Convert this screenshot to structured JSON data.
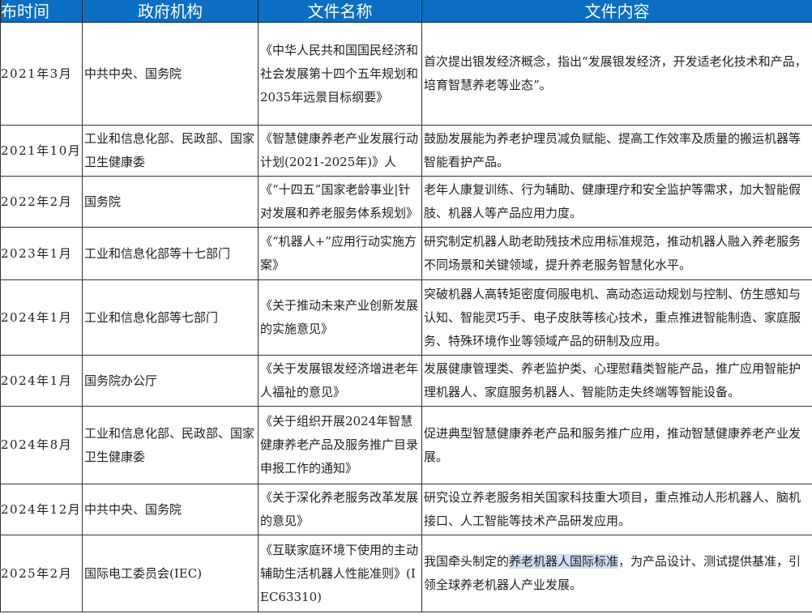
{
  "table": {
    "headers": [
      "布时间",
      "政府机构",
      "文件名称",
      "文件内容"
    ],
    "rows": [
      {
        "date": "2021年3月",
        "agency": "中共中央、国务院",
        "document": "《中华人民共和国国民经济和社会发展第十四个五年规划和2035年远景目标纲要》",
        "content": "首次提出银发经济概念，指出“发展银发经济，开发适老化技术和产品，培育智慧养老等业态”。"
      },
      {
        "date": "2021年10月",
        "agency": "工业和信息化部、民政部、国家卫生健康委",
        "document": "《智慧健康养老产业发展行动计划(2021-2025年)》人",
        "content": "鼓励发展能为养老护理员减负赋能、提高工作效率及质量的搬运机器等智能看护产品。"
      },
      {
        "date": "2022年2月",
        "agency": "国务院",
        "document": "《“十四五”国家老龄事业|针对发展和养老服务体系规划》",
        "content": "老年人康复训练、行为辅助、健康理疗和安全监护等需求，加大智能假肢、机器人等产品应用力度。"
      },
      {
        "date": "2023年1月",
        "agency": "工业和信息化部等十七部门",
        "document": "《“机器人+”应用行动实施方案》",
        "content": "研究制定机器人助老助残技术应用标准规范，推动机器人融入养老服务不同场景和关键领域，提升养老服务智慧化水平。"
      },
      {
        "date": "2024年1月",
        "agency": "工业和信息化部等七部门",
        "document": "《关于推动未来产业创新发展的实施意见》",
        "content": "突破机器人高转矩密度伺服电机、高动态运动规划与控制、仿生感知与认知、智能灵巧手、电子皮肤等核心技术，重点推进智能制造、家庭服务、特殊环境作业等领域产品的研制及应用。"
      },
      {
        "date": "2024年1月",
        "agency": "国务院办公厅",
        "document": "《关于发展银发经济增进老年人福祉的意见》",
        "content": "发展健康管理类、养老监护类、心理慰藉类智能产品，推广应用智能护理机器人、家庭服务机器人、智能防走失终端等智能设备。"
      },
      {
        "date": "2024年8月",
        "agency": "工业和信息化部、民政部、国家卫生健康委",
        "document": "《关于组织开展2024年智慧健康养老产品及服务推广目录申报工作的通知》",
        "content": "促进典型智慧健康养老产品和服务推广应用，推动智慧健康养老产业发展。"
      },
      {
        "date": "2024年12月",
        "agency": "中共中央、国务院",
        "document": "《关于深化养老服务改革发展的意见》",
        "content": "研究设立养老服务相关国家科技重大项目，重点推动人形机器人、脑机接口、人工智能等技术产品研发应用。"
      },
      {
        "date": "2025年2月",
        "agency": "国际电工委员会(IEC)",
        "document": "《互联家庭环境下使用的主动辅助生活机器人性能准则》(IEC63310)",
        "content_parts": {
          "before": "我国牵头制定的",
          "highlighted": "养老机器人国际标准",
          "after": "，为产品设计、测试提供基准，引领全球养老机器人产业发展。"
        }
      }
    ]
  },
  "colors": {
    "header_bg": "#0a6fc2",
    "header_text": "#ffffff",
    "highlight": "#cfe0f3"
  }
}
